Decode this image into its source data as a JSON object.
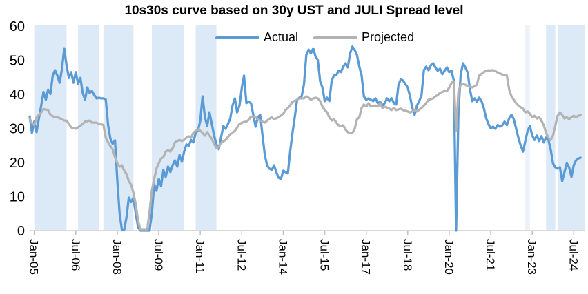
{
  "title": "10s30s curve based on 30y UST and JULI Spread level",
  "legend": [
    {
      "label": "Actual",
      "color": "#5b9bd5"
    },
    {
      "label": "Projected",
      "color": "#b3b3b3"
    }
  ],
  "chart_data": {
    "type": "line",
    "title": "10s30s curve based on 30y UST and JULI Spread level",
    "x_frequency": "monthly",
    "x_start": "2004-11",
    "x_end": "2024-10",
    "ylim": [
      0,
      60
    ],
    "y_ticks": [
      0,
      10,
      20,
      30,
      40,
      50,
      60
    ],
    "grid": false,
    "legend_position": "top-center",
    "x_ticks": [
      {
        "label": "Jan-05",
        "index": 2
      },
      {
        "label": "Jul-06",
        "index": 20
      },
      {
        "label": "Jan-08",
        "index": 38
      },
      {
        "label": "Jul-09",
        "index": 56
      },
      {
        "label": "Jan-11",
        "index": 74
      },
      {
        "label": "Jul-12",
        "index": 92
      },
      {
        "label": "Jan-14",
        "index": 110
      },
      {
        "label": "Jul-15",
        "index": 128
      },
      {
        "label": "Jan-17",
        "index": 146
      },
      {
        "label": "Jul-18",
        "index": 164
      },
      {
        "label": "Jan-20",
        "index": 182
      },
      {
        "label": "Jul-21",
        "index": 200
      },
      {
        "label": "Jan-23",
        "index": 218
      },
      {
        "label": "Jul-24",
        "index": 236
      }
    ],
    "x_index_max": 241,
    "band_color": "#dce9f6",
    "band_color_light": "#ebf2fa",
    "shaded_bands": [
      {
        "from": 2,
        "to": 16,
        "light": false
      },
      {
        "from": 21,
        "to": 30,
        "light": false
      },
      {
        "from": 32,
        "to": 45,
        "light": false
      },
      {
        "from": 53,
        "to": 67,
        "light": false
      },
      {
        "from": 72,
        "to": 81,
        "light": false
      },
      {
        "from": 215,
        "to": 217,
        "light": true
      },
      {
        "from": 224,
        "to": 228,
        "light": false
      },
      {
        "from": 229,
        "to": 241,
        "light": false
      }
    ],
    "axis_color": "#d9d9d9",
    "tick_color": "#bfbfbf",
    "series": [
      {
        "name": "Actual",
        "color": "#5b9bd5",
        "stroke_width": 3.3,
        "values": [
          33.5,
          28.7,
          32,
          28.9,
          33,
          36.7,
          40.7,
          38.4,
          41.4,
          40.1,
          45.5,
          47.1,
          45.5,
          43.4,
          47.5,
          53.5,
          48.5,
          44.8,
          46.5,
          43.4,
          46.5,
          43.1,
          44.8,
          40.4,
          38.4,
          42,
          40.4,
          41,
          39.8,
          38.8,
          39,
          38.8,
          38.8,
          38.5,
          31,
          27,
          25.5,
          26.5,
          15,
          5,
          0.3,
          0.3,
          4,
          9.7,
          8.4,
          9.7,
          5,
          1,
          0,
          0,
          0,
          0,
          0,
          5.1,
          13.7,
          11.7,
          15.2,
          13.1,
          17.8,
          15.8,
          18.8,
          17.2,
          19.2,
          20.6,
          18.8,
          22.2,
          20.2,
          23.2,
          25.3,
          24.9,
          26.6,
          25.9,
          28.7,
          29.3,
          32.3,
          39.4,
          33.3,
          30.7,
          34.7,
          31.3,
          27.9,
          25.3,
          23.9,
          27.3,
          30.7,
          29.9,
          31.3,
          32.9,
          36.7,
          38.8,
          34.7,
          36.7,
          41.8,
          45.5,
          37.4,
          37.8,
          37.4,
          34,
          30.5,
          33.3,
          34,
          27.9,
          22.2,
          19.2,
          18.2,
          17.8,
          19.2,
          17.2,
          15.5,
          15.2,
          17.6,
          17.2,
          16.8,
          23.2,
          28.7,
          33.3,
          38.4,
          39,
          39.4,
          43,
          51.5,
          53.1,
          52,
          53.5,
          51.1,
          50.1,
          43.8,
          42,
          38,
          39,
          38,
          44,
          45.5,
          45.6,
          46.9,
          46.5,
          48.1,
          49.1,
          47.9,
          52,
          54,
          53,
          51.5,
          48.1,
          45.5,
          39.4,
          38.4,
          38.8,
          38.4,
          38,
          38.8,
          37.4,
          37.8,
          36.7,
          37.4,
          38.8,
          38,
          38.8,
          37.4,
          37,
          42.8,
          44.4,
          44,
          43,
          42,
          39.4,
          36,
          34,
          36.7,
          38,
          39.8,
          47.1,
          48.1,
          47.1,
          48.5,
          49.1,
          47.9,
          46.9,
          47.5,
          45.9,
          46.9,
          47.9,
          46.5,
          46.9,
          44,
          0,
          35,
          46,
          49.1,
          47.9,
          46.4,
          41.4,
          38,
          38.8,
          37.8,
          39,
          38,
          36,
          33,
          31.3,
          30,
          30.5,
          29.9,
          31,
          30.5,
          30.9,
          32,
          31,
          33,
          34,
          32.7,
          30,
          27.3,
          25,
          23.2,
          26.3,
          29.3,
          30.7,
          27.9,
          26.6,
          27.9,
          26.3,
          27.7,
          25.9,
          27.3,
          26.6,
          23.9,
          19.8,
          18.6,
          18.2,
          18.6,
          14.5,
          17.2,
          19.8,
          18.6,
          15.8,
          19.2,
          20.6,
          21.2,
          21.4
        ]
      },
      {
        "name": "Projected",
        "color": "#b3b3b3",
        "stroke_width": 3.3,
        "values": [
          32.9,
          31.5,
          31,
          33.3,
          34,
          34.7,
          35.7,
          35.5,
          35.4,
          34,
          33.6,
          33.3,
          33.3,
          33,
          32.7,
          32.3,
          32.3,
          31.3,
          30.3,
          30.1,
          29.9,
          30.3,
          30.8,
          31.3,
          32,
          32.1,
          32.3,
          31.7,
          31.7,
          31.7,
          31.3,
          31.2,
          31,
          27.3,
          25.9,
          24.8,
          23.9,
          21.6,
          19.8,
          18.8,
          19.2,
          17.6,
          16.6,
          14.5,
          13.5,
          11.1,
          7.7,
          3,
          0.4,
          0.4,
          0.4,
          0.4,
          5.7,
          11.7,
          15.2,
          18.2,
          19.8,
          21.2,
          21.6,
          23.2,
          23.6,
          23.2,
          24.2,
          25.9,
          26.3,
          26.6,
          26.3,
          26.6,
          27.3,
          27.7,
          27.3,
          28.7,
          29.3,
          29.7,
          29.3,
          28.7,
          27.9,
          28.9,
          27.9,
          26.9,
          25.5,
          24.2,
          24.6,
          25.7,
          26.2,
          26.6,
          27.5,
          28.3,
          28.8,
          29.3,
          30.3,
          31.3,
          31.6,
          31.9,
          32,
          32.5,
          33.5,
          33.3,
          33.3,
          32.7,
          32.3,
          32,
          31.7,
          32.3,
          32.8,
          33.3,
          32.7,
          33,
          33.3,
          33.8,
          34.3,
          35.4,
          36,
          36.7,
          37.8,
          38.1,
          38.4,
          38.8,
          38.8,
          38.8,
          39.4,
          39,
          38.4,
          38.8,
          39,
          38.8,
          38,
          36.4,
          35.4,
          34.7,
          33.3,
          32.3,
          32.7,
          31.7,
          30.9,
          30.7,
          30.9,
          29.7,
          28.9,
          28.7,
          28.7,
          29.9,
          32.7,
          33.3,
          36,
          37,
          36.4,
          37.4,
          36.4,
          36.6,
          36.7,
          36.4,
          37.4,
          36,
          36.4,
          36.1,
          35.8,
          35.4,
          36,
          35.4,
          35.6,
          35.8,
          35.4,
          35.2,
          35,
          34.7,
          35,
          35.4,
          35,
          35.5,
          36,
          36.7,
          37.4,
          38.4,
          38.6,
          38.8,
          39.4,
          39.8,
          40.4,
          40.7,
          41,
          41,
          42,
          43.4,
          43.8,
          29.3,
          40.8,
          42.8,
          43,
          42.8,
          42.4,
          42.2,
          42,
          42.4,
          42.8,
          45.5,
          46,
          46.5,
          46.9,
          47,
          47,
          47.1,
          46.8,
          46.4,
          46.1,
          45.8,
          45.6,
          45.5,
          41.4,
          39.4,
          38.4,
          37.4,
          36.7,
          36.2,
          35.8,
          34.7,
          35,
          34.3,
          33.3,
          33.7,
          32.9,
          33.3,
          32.3,
          30.9,
          28.7,
          27.3,
          26.6,
          27.9,
          30.7,
          33.7,
          34.7,
          34,
          32.9,
          33.3,
          32.7,
          33.3,
          33.7,
          33.3,
          33.7,
          34
        ]
      }
    ]
  }
}
